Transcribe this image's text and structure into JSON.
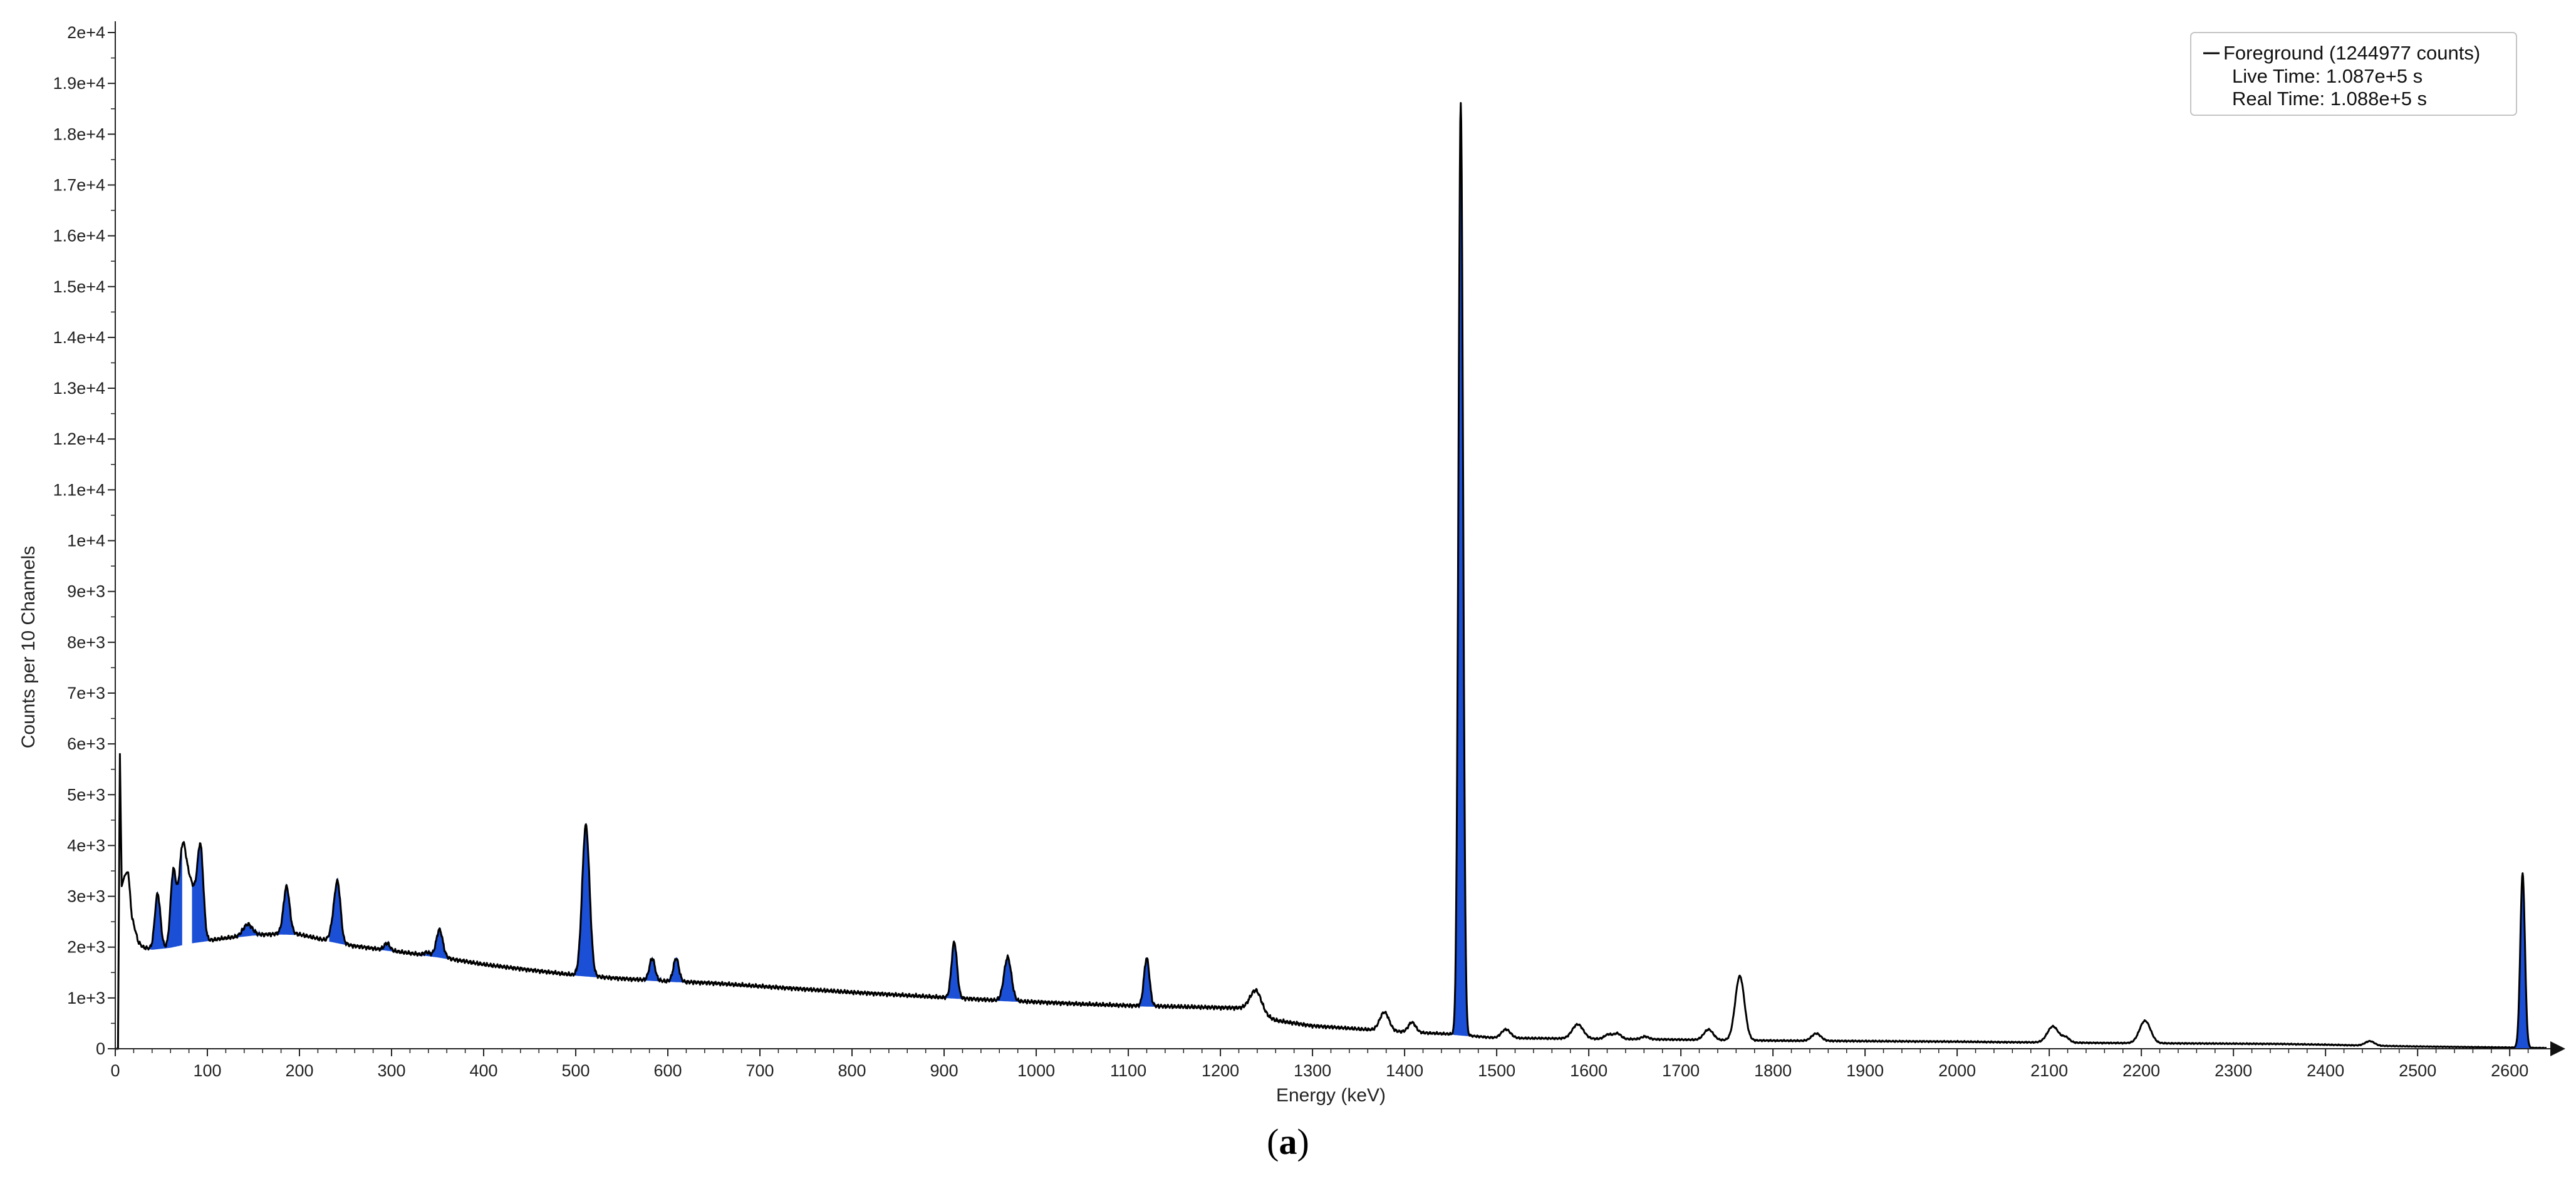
{
  "chart_data": {
    "type": "line",
    "xlabel": "Energy (keV)",
    "ylabel": "Counts per 10 Channels",
    "xlim": [
      0,
      2640
    ],
    "ylim": [
      0,
      20000
    ],
    "x_ticks": [
      0,
      100,
      200,
      300,
      400,
      500,
      600,
      700,
      800,
      900,
      1000,
      1100,
      1200,
      1300,
      1400,
      1500,
      1600,
      1700,
      1800,
      1900,
      2000,
      2100,
      2200,
      2300,
      2400,
      2500,
      2600
    ],
    "x_tick_labels": [
      "0",
      "100",
      "200",
      "300",
      "400",
      "500",
      "600",
      "700",
      "800",
      "900",
      "1000",
      "1100",
      "1200",
      "1300",
      "1400",
      "1500",
      "1600",
      "1700",
      "1800",
      "1900",
      "2000",
      "2100",
      "2200",
      "2300",
      "2400",
      "2500",
      "2600"
    ],
    "y_ticks": [
      0,
      1000,
      2000,
      3000,
      4000,
      5000,
      6000,
      7000,
      8000,
      9000,
      10000,
      11000,
      12000,
      13000,
      14000,
      15000,
      16000,
      17000,
      18000,
      19000,
      20000
    ],
    "y_tick_labels": [
      "0",
      "1e+3",
      "2e+3",
      "3e+3",
      "4e+3",
      "5e+3",
      "6e+3",
      "7e+3",
      "8e+3",
      "9e+3",
      "1e+4",
      "1.1e+4",
      "1.2e+4",
      "1.3e+4",
      "1.4e+4",
      "1.5e+4",
      "1.6e+4",
      "1.7e+4",
      "1.8e+4",
      "1.9e+4",
      "2e+4"
    ],
    "grid": false,
    "legend": {
      "position": "top-right",
      "series_label": "Foreground (1244977 counts)",
      "live_time": "Live Time: 1.087e+5 s",
      "real_time": "Real Time: 1.088e+5 s"
    },
    "colors": {
      "spectrum": "#000000",
      "peak_fill": "#1a4fd6"
    },
    "baseline": [
      [
        0,
        0
      ],
      [
        3,
        0
      ],
      [
        5,
        5800
      ],
      [
        7,
        3200
      ],
      [
        10,
        3400
      ],
      [
        14,
        3500
      ],
      [
        18,
        2600
      ],
      [
        25,
        2100
      ],
      [
        30,
        2000
      ],
      [
        40,
        1960
      ],
      [
        60,
        2000
      ],
      [
        80,
        2080
      ],
      [
        100,
        2130
      ],
      [
        120,
        2180
      ],
      [
        150,
        2240
      ],
      [
        180,
        2260
      ],
      [
        200,
        2250
      ],
      [
        230,
        2130
      ],
      [
        260,
        2020
      ],
      [
        300,
        1930
      ],
      [
        350,
        1810
      ],
      [
        400,
        1660
      ],
      [
        450,
        1550
      ],
      [
        500,
        1450
      ],
      [
        550,
        1380
      ],
      [
        600,
        1330
      ],
      [
        650,
        1290
      ],
      [
        700,
        1230
      ],
      [
        750,
        1170
      ],
      [
        800,
        1110
      ],
      [
        850,
        1060
      ],
      [
        900,
        1010
      ],
      [
        950,
        960
      ],
      [
        1000,
        920
      ],
      [
        1050,
        880
      ],
      [
        1100,
        850
      ],
      [
        1150,
        830
      ],
      [
        1200,
        810
      ],
      [
        1230,
        800
      ],
      [
        1260,
        560
      ],
      [
        1300,
        450
      ],
      [
        1350,
        390
      ],
      [
        1400,
        330
      ],
      [
        1450,
        290
      ],
      [
        1500,
        210
      ],
      [
        1550,
        205
      ],
      [
        1600,
        195
      ],
      [
        1650,
        190
      ],
      [
        1700,
        180
      ],
      [
        1750,
        170
      ],
      [
        1800,
        160
      ],
      [
        1850,
        155
      ],
      [
        1900,
        150
      ],
      [
        1950,
        145
      ],
      [
        2000,
        140
      ],
      [
        2050,
        130
      ],
      [
        2100,
        125
      ],
      [
        2150,
        115
      ],
      [
        2200,
        110
      ],
      [
        2250,
        105
      ],
      [
        2300,
        100
      ],
      [
        2350,
        95
      ],
      [
        2400,
        80
      ],
      [
        2450,
        60
      ],
      [
        2500,
        45
      ],
      [
        2550,
        35
      ],
      [
        2600,
        25
      ],
      [
        2640,
        15
      ]
    ],
    "black_peaks": [
      [
        73,
        3900,
        4
      ],
      [
        81,
        3050,
        4
      ],
      [
        89,
        2900,
        4
      ],
      [
        186,
        2600,
        4
      ],
      [
        239,
        2700,
        4
      ],
      [
        352,
        2100,
        4
      ],
      [
        1238,
        1150,
        6
      ],
      [
        1378,
        720,
        5
      ],
      [
        1408,
        520,
        4
      ],
      [
        1510,
        380,
        5
      ],
      [
        1588,
        480,
        6
      ],
      [
        1621,
        280,
        4
      ],
      [
        1631,
        300,
        4
      ],
      [
        1661,
        240,
        4
      ],
      [
        1730,
        380,
        5
      ],
      [
        1764,
        1430,
        5
      ],
      [
        1847,
        300,
        5
      ],
      [
        2104,
        440,
        6
      ],
      [
        2118,
        220,
        4
      ],
      [
        2204,
        550,
        6
      ],
      [
        2448,
        150,
        5
      ]
    ],
    "blue_peaks": [
      [
        46,
        3050,
        3
      ],
      [
        63,
        3450,
        3
      ],
      [
        93,
        3500,
        3
      ],
      [
        144,
        2450,
        5
      ],
      [
        186,
        2850,
        3
      ],
      [
        242,
        2800,
        3
      ],
      [
        295,
        2080,
        3
      ],
      [
        338,
        1900,
        3
      ],
      [
        352,
        2050,
        3
      ],
      [
        511,
        4400,
        4
      ],
      [
        583,
        1780,
        3
      ],
      [
        609,
        1780,
        3
      ],
      [
        911,
        2100,
        3
      ],
      [
        969,
        1800,
        4
      ],
      [
        1120,
        1780,
        3
      ],
      [
        1461,
        18600,
        2.5
      ],
      [
        2614,
        3450,
        2.5
      ]
    ]
  }
}
